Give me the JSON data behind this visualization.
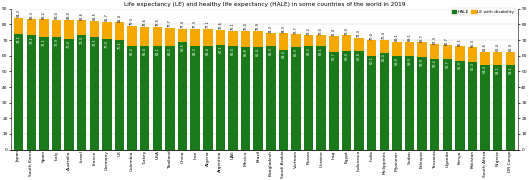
{
  "title": "Life expectancy (LE) and healthy life expectancy (HALE) in some countries of the world in 2019",
  "countries": [
    "Japan",
    "South Korea",
    "Spain",
    "Italy",
    "Australia",
    "Israel",
    "France",
    "Germany",
    "UK",
    "Colombia",
    "Turkey",
    "USA",
    "Thailand",
    "China",
    "Iran",
    "Algeria",
    "Argentina",
    "UAE",
    "Mexico",
    "Brazil",
    "Bangladesh",
    "Saudi Arabia",
    "Vietnam",
    "Russia",
    "Ukraine",
    "Iraq",
    "Egypt",
    "Indonesia",
    "India",
    "Philippines",
    "Myanmar",
    "Sudan",
    "Ethiopia",
    "Tanzania",
    "Uganda",
    "Kenya",
    "Pakistan",
    "South Africa",
    "Nigeria",
    "DR Congo"
  ],
  "hale": [
    74.1,
    73.1,
    72.1,
    71.9,
    70.9,
    73.4,
    72.1,
    70.9,
    70.1,
    66.0,
    66.4,
    66.1,
    66.2,
    68.5,
    66.3,
    66.4,
    67.1,
    66.0,
    65.8,
    65.4,
    66.3,
    64.0,
    65.3,
    66.3,
    66.1,
    62.7,
    63.0,
    62.8,
    60.1,
    62.0,
    59.9,
    59.9,
    58.9,
    58.2,
    57.7,
    56.9,
    56.3,
    54.4,
    54.1,
    54.1
  ],
  "le": [
    84.3,
    83.3,
    83.2,
    83.0,
    83.0,
    82.6,
    82.5,
    81.7,
    81.4,
    79.3,
    78.6,
    78.5,
    77.7,
    77.4,
    77.3,
    77.1,
    76.6,
    76.1,
    76.0,
    75.9,
    74.3,
    74.3,
    73.7,
    73.2,
    73.0,
    72.4,
    73.0,
    71.3,
    70.0,
    70.4,
    69.1,
    69.1,
    68.7,
    67.3,
    66.7,
    66.1,
    65.3,
    62.6,
    62.4,
    62.4
  ],
  "hale_color": "#1a7a1a",
  "disability_color": "#f5a800",
  "background_color": "#ffffff",
  "legend_hale": "HALE",
  "legend_le": "LE with disability",
  "ylim": [
    0,
    90
  ],
  "yticks": [
    0,
    10,
    20,
    30,
    40,
    50,
    60,
    70,
    80,
    90
  ],
  "bar_width": 0.75,
  "title_fontsize": 4.2,
  "tick_fontsize": 3.2,
  "value_fontsize": 2.5
}
